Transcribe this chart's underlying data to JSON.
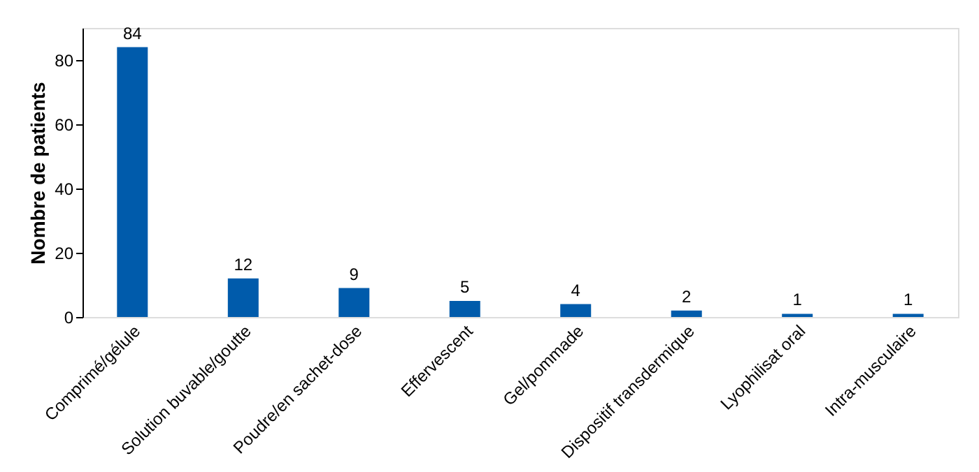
{
  "chart_data": {
    "type": "bar",
    "ylabel": "Nombre de patients",
    "categories": [
      "Comprimé/gélule",
      "Solution buvable/goutte",
      "Poudre/en sachet-dose",
      "Effervescent",
      "Gel/pommade",
      "Dispositif transdermique",
      "Lyophilisat oral",
      "Intra-musculaire"
    ],
    "values": [
      84,
      12,
      9,
      5,
      4,
      2,
      1,
      1
    ],
    "color": "#005bab",
    "ylim": [
      0,
      90
    ],
    "yticks": [
      0,
      20,
      40,
      60,
      80
    ],
    "grid": false,
    "data_labels": true
  }
}
